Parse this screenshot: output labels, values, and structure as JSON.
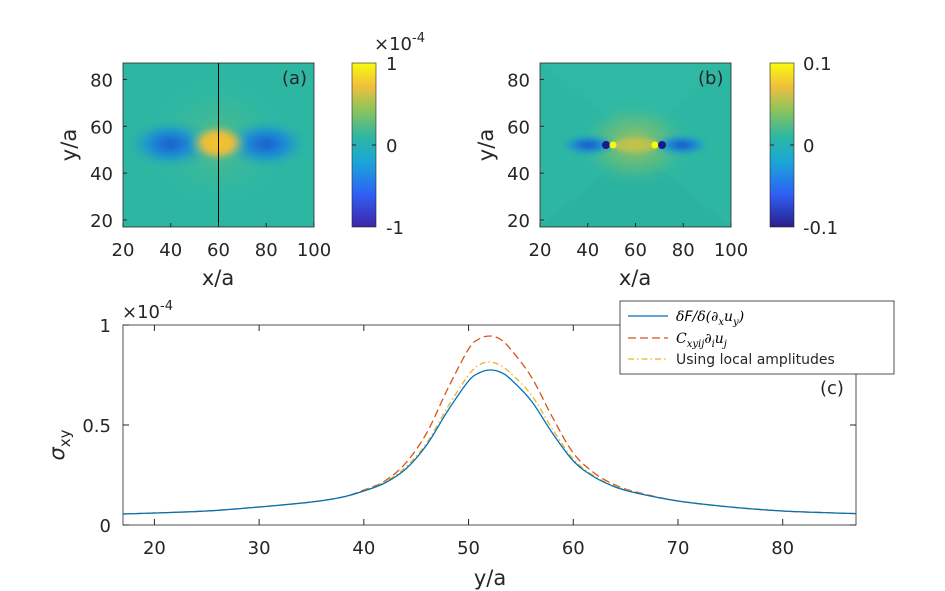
{
  "chart_data": [
    {
      "type": "heatmap",
      "panel_label": "(a)",
      "xlabel": "x/a",
      "ylabel": "y/a",
      "xlim": [
        20,
        100
      ],
      "ylim": [
        17,
        87
      ],
      "xticks": [
        "20",
        "40",
        "60",
        "80",
        "100"
      ],
      "yticks": [
        "20",
        "40",
        "60",
        "80"
      ],
      "colorbar": {
        "min": -1,
        "max": 1,
        "ticks": [
          "-1",
          "0",
          "1"
        ],
        "exponent": "×10",
        "exponent_power": "-4"
      },
      "marked_line_x": 60,
      "features": {
        "center_x": 60,
        "center_y": 52,
        "center_value": 0.8,
        "lobe_value": -0.6,
        "lobe_dx": 16
      },
      "colors": {
        "background": "#2DB7A3",
        "high": "#F5C42D",
        "low": "#1D5FCB"
      }
    },
    {
      "type": "heatmap",
      "panel_label": "(b)",
      "xlabel": "x/a",
      "ylabel": "y/a",
      "xlim": [
        20,
        100
      ],
      "ylim": [
        17,
        87
      ],
      "xticks": [
        "20",
        "40",
        "60",
        "80",
        "100"
      ],
      "yticks": [
        "20",
        "40",
        "60",
        "80"
      ],
      "colorbar": {
        "min": -0.1,
        "max": 0.1,
        "ticks": [
          "-0.1",
          "0",
          "0.1"
        ]
      },
      "features": {
        "core_left_x": 50,
        "core_right_x": 70,
        "core_y": 52,
        "core_value": 1.0
      },
      "colors": {
        "background": "#2DB7A3",
        "high": "#F9FB0E",
        "low": "#1A1A8C"
      }
    },
    {
      "type": "line",
      "panel_label": "(c)",
      "xlabel": "y/a",
      "ylabel": "σ",
      "ylabel_sub": "xy",
      "xlim": [
        17,
        87
      ],
      "ylim": [
        0,
        1
      ],
      "xticks": [
        "20",
        "30",
        "40",
        "50",
        "60",
        "70",
        "80"
      ],
      "yticks": [
        "0",
        "0.5",
        "1"
      ],
      "y_exponent": "×10",
      "y_exponent_power": "-4",
      "x": [
        17,
        20,
        25,
        30,
        35,
        38,
        40,
        42,
        44,
        46,
        48,
        50,
        51,
        52,
        53,
        54,
        56,
        58,
        60,
        62,
        64,
        66,
        70,
        75,
        80,
        85,
        87
      ],
      "series": [
        {
          "name": "δF/δ(∂xuy)",
          "legend_parts": [
            "δ",
            "F",
            "/δ(∂",
            "x",
            "u",
            "y",
            ")"
          ],
          "color": "#0072BD",
          "dash": "none",
          "values": [
            0.055,
            0.06,
            0.07,
            0.09,
            0.115,
            0.14,
            0.17,
            0.21,
            0.28,
            0.4,
            0.57,
            0.72,
            0.76,
            0.775,
            0.765,
            0.73,
            0.62,
            0.46,
            0.32,
            0.24,
            0.19,
            0.16,
            0.12,
            0.09,
            0.07,
            0.06,
            0.057
          ]
        },
        {
          "name": "Cxyij∂iuj",
          "legend_parts": [
            "C",
            "xyij",
            "∂",
            "i",
            "u",
            "j"
          ],
          "color": "#D95319",
          "dash": "8,4",
          "values": [
            0.055,
            0.06,
            0.07,
            0.09,
            0.115,
            0.14,
            0.175,
            0.22,
            0.31,
            0.46,
            0.68,
            0.88,
            0.93,
            0.945,
            0.93,
            0.88,
            0.74,
            0.54,
            0.36,
            0.26,
            0.2,
            0.165,
            0.12,
            0.09,
            0.07,
            0.06,
            0.057
          ]
        },
        {
          "name": "Using local amplitudes",
          "legend_parts": [
            "Using local amplitudes"
          ],
          "color": "#EDB120",
          "dash": "6,3,1.5,3",
          "values": [
            0.055,
            0.06,
            0.07,
            0.09,
            0.115,
            0.14,
            0.172,
            0.215,
            0.29,
            0.41,
            0.59,
            0.75,
            0.8,
            0.815,
            0.8,
            0.76,
            0.65,
            0.48,
            0.33,
            0.245,
            0.195,
            0.162,
            0.12,
            0.09,
            0.07,
            0.06,
            0.057
          ]
        }
      ]
    }
  ]
}
